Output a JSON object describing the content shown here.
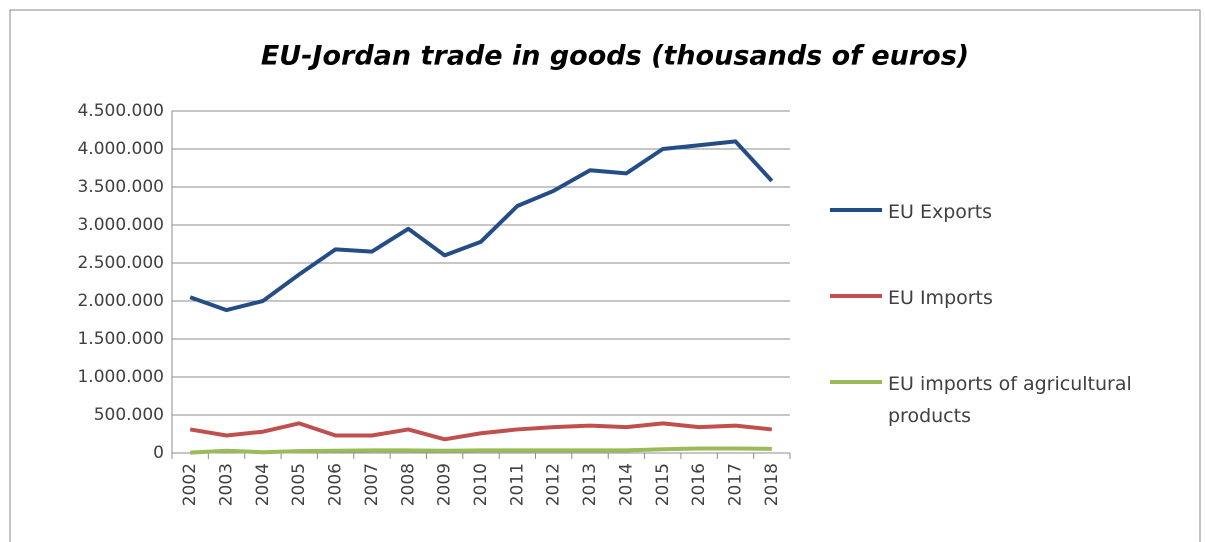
{
  "chart_data": {
    "type": "line",
    "title": "EU-Jordan trade in goods (thousands of euros)",
    "categories": [
      "2002",
      "2003",
      "2004",
      "2005",
      "2006",
      "2007",
      "2008",
      "2009",
      "2010",
      "2011",
      "2012",
      "2013",
      "2014",
      "2015",
      "2016",
      "2017",
      "2018"
    ],
    "series": [
      {
        "name": "EU Exports",
        "color": "#244d86",
        "values": [
          2050000,
          1880000,
          2000000,
          2350000,
          2680000,
          2650000,
          2950000,
          2600000,
          2780000,
          3250000,
          3450000,
          3720000,
          3680000,
          4000000,
          4050000,
          4100000,
          3580000
        ]
      },
      {
        "name": "EU Imports",
        "color": "#c0504d",
        "values": [
          310000,
          230000,
          280000,
          390000,
          230000,
          230000,
          310000,
          180000,
          260000,
          310000,
          340000,
          360000,
          340000,
          390000,
          340000,
          360000,
          310000
        ]
      },
      {
        "name": "EU imports of agricultural products",
        "color": "#9bbb59",
        "values": [
          5000,
          30000,
          10000,
          25000,
          30000,
          35000,
          35000,
          30000,
          35000,
          35000,
          35000,
          35000,
          35000,
          50000,
          60000,
          60000,
          55000
        ]
      }
    ],
    "ylim": [
      0,
      4500000
    ],
    "yticks": [
      0,
      {
        "value": 500000,
        "label": "500.000"
      },
      {
        "value": 1000000,
        "label": "1.000.000"
      },
      {
        "value": 1500000,
        "label": "1.500.000"
      },
      {
        "value": 2000000,
        "label": "2.000.000"
      },
      {
        "value": 2500000,
        "label": "2.500.000"
      },
      {
        "value": 3000000,
        "label": "3.000.000"
      },
      {
        "value": 3500000,
        "label": "3.500.000"
      },
      {
        "value": 4000000,
        "label": "4.000.000"
      },
      {
        "value": 4500000,
        "label": "4.500.000"
      }
    ],
    "grid": true
  }
}
